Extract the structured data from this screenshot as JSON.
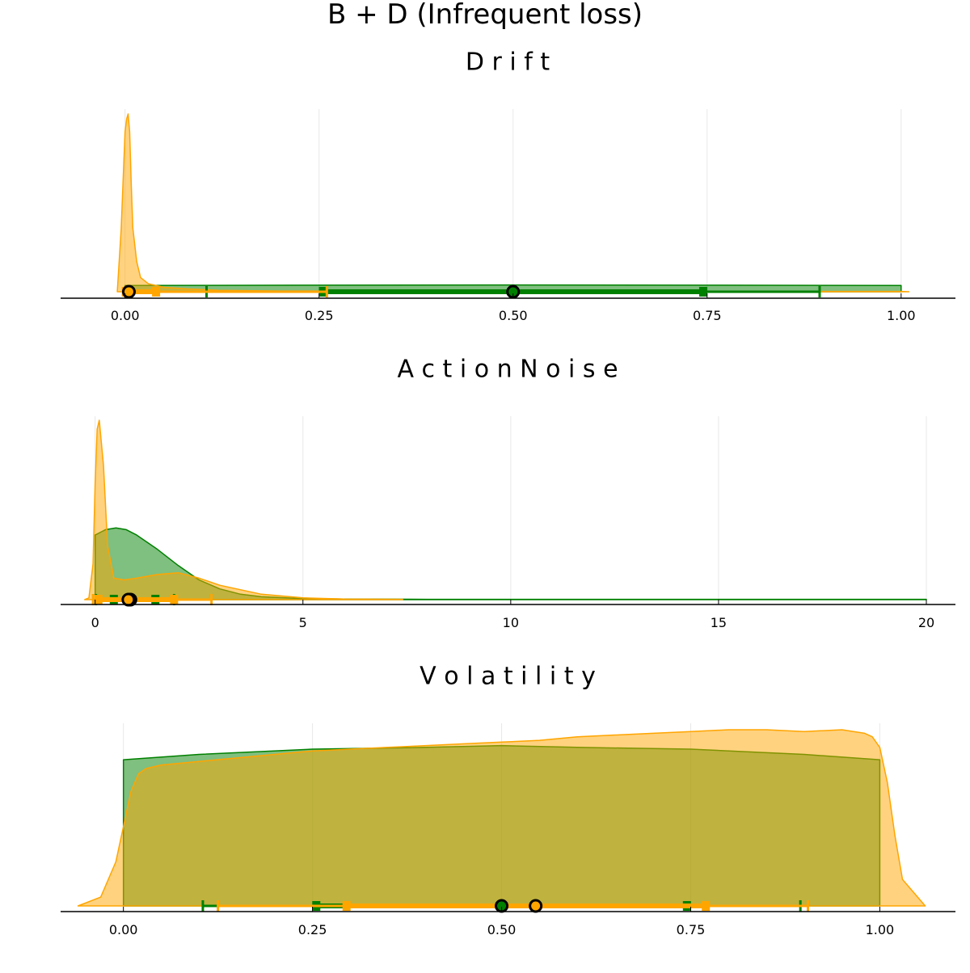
{
  "figure_title": "B + D (Infrequent loss)",
  "colors": {
    "prior": "#008000",
    "posterior": "#ffa500"
  },
  "chart_data": [
    {
      "type": "area",
      "title": "D r i f t",
      "xlim": [
        -0.083,
        1.07
      ],
      "ticks": [
        0,
        0.25,
        0.5,
        0.75,
        1.0
      ],
      "tick_labels": [
        "0.00",
        "0.25",
        "0.50",
        "0.75",
        "1.00"
      ],
      "grid": true,
      "series": [
        {
          "key": "prior",
          "x": [
            0.0,
            0.25,
            0.5,
            0.75,
            1.0
          ],
          "density": [
            0.035,
            0.037,
            0.038,
            0.037,
            0.035
          ],
          "interval": {
            "outer": [
              0.105,
              0.895
            ],
            "inner": [
              0.255,
              0.745
            ],
            "point": 0.5
          }
        },
        {
          "key": "posterior",
          "x": [
            -0.01,
            -0.005,
            0.0,
            0.002,
            0.004,
            0.006,
            0.008,
            0.01,
            0.015,
            0.02,
            0.03,
            0.05,
            0.08,
            0.12,
            0.2,
            0.5,
            1.0,
            1.01
          ],
          "density": [
            0.0,
            0.35,
            0.9,
            0.97,
            1.0,
            0.9,
            0.6,
            0.36,
            0.17,
            0.08,
            0.045,
            0.025,
            0.016,
            0.008,
            0.004,
            0.002,
            0.002,
            0.0
          ],
          "interval": {
            "outer": [
              0.0,
              0.26
            ],
            "inner": [
              0.001,
              0.04
            ],
            "point": 0.005
          }
        }
      ]
    },
    {
      "type": "area",
      "title": "A c t i o n   N o i s e",
      "xlim": [
        -0.83,
        20.7
      ],
      "ticks": [
        0,
        5,
        10,
        15,
        20
      ],
      "tick_labels": [
        "0",
        "5",
        "10",
        "15",
        "20"
      ],
      "grid": true,
      "series": [
        {
          "key": "prior",
          "x": [
            0.0,
            0.25,
            0.5,
            0.75,
            1.0,
            1.5,
            2.0,
            2.5,
            3.0,
            3.5,
            4.0,
            5.0,
            6.0,
            8.0,
            10.0,
            15.0,
            20.0
          ],
          "density": [
            0.36,
            0.39,
            0.4,
            0.39,
            0.36,
            0.28,
            0.19,
            0.11,
            0.06,
            0.03,
            0.016,
            0.006,
            0.003,
            0.002,
            0.002,
            0.002,
            0.002
          ],
          "interval": {
            "outer": [
              0.02,
              1.9
            ],
            "inner": [
              0.45,
              1.45
            ],
            "point": 0.85
          }
        },
        {
          "key": "posterior",
          "x": [
            -0.25,
            -0.15,
            -0.05,
            0.0,
            0.05,
            0.1,
            0.2,
            0.3,
            0.45,
            0.7,
            1.0,
            1.5,
            2.0,
            2.5,
            3.0,
            4.0,
            5.0,
            6.0,
            7.4
          ],
          "density": [
            0.0,
            0.01,
            0.2,
            0.65,
            0.95,
            1.0,
            0.75,
            0.3,
            0.12,
            0.11,
            0.12,
            0.14,
            0.15,
            0.12,
            0.08,
            0.03,
            0.01,
            0.003,
            0.002
          ],
          "interval": {
            "outer": [
              -0.05,
              2.8
            ],
            "inner": [
              0.08,
              1.9
            ],
            "point": 0.8
          }
        }
      ]
    },
    {
      "type": "area",
      "title": "V o l a t i l i t y",
      "xlim": [
        -0.083,
        1.1
      ],
      "ticks": [
        0,
        0.25,
        0.5,
        0.75,
        1.0
      ],
      "tick_labels": [
        "0.00",
        "0.25",
        "0.50",
        "0.75",
        "1.00"
      ],
      "grid": true,
      "series": [
        {
          "key": "prior",
          "x": [
            0.0,
            0.1,
            0.25,
            0.4,
            0.5,
            0.6,
            0.75,
            0.9,
            1.0
          ],
          "density": [
            0.83,
            0.86,
            0.89,
            0.9,
            0.91,
            0.9,
            0.89,
            0.86,
            0.83
          ],
          "interval": {
            "outer": [
              0.105,
              0.895
            ],
            "inner": [
              0.255,
              0.745
            ],
            "point": 0.5
          }
        },
        {
          "key": "posterior",
          "x": [
            -0.06,
            -0.03,
            -0.01,
            0.0,
            0.01,
            0.02,
            0.03,
            0.05,
            0.1,
            0.15,
            0.2,
            0.25,
            0.3,
            0.35,
            0.4,
            0.45,
            0.5,
            0.55,
            0.6,
            0.65,
            0.7,
            0.75,
            0.8,
            0.85,
            0.9,
            0.95,
            0.98,
            0.99,
            1.0,
            1.01,
            1.02,
            1.03,
            1.06
          ],
          "density": [
            0.0,
            0.05,
            0.25,
            0.45,
            0.65,
            0.75,
            0.78,
            0.8,
            0.82,
            0.84,
            0.86,
            0.88,
            0.89,
            0.9,
            0.91,
            0.92,
            0.93,
            0.94,
            0.96,
            0.97,
            0.98,
            0.99,
            1.0,
            1.0,
            0.99,
            1.0,
            0.98,
            0.96,
            0.9,
            0.7,
            0.4,
            0.15,
            0.0
          ],
          "interval": {
            "outer": [
              0.125,
              0.905
            ],
            "inner": [
              0.295,
              0.77
            ],
            "point": 0.545
          }
        }
      ]
    }
  ]
}
